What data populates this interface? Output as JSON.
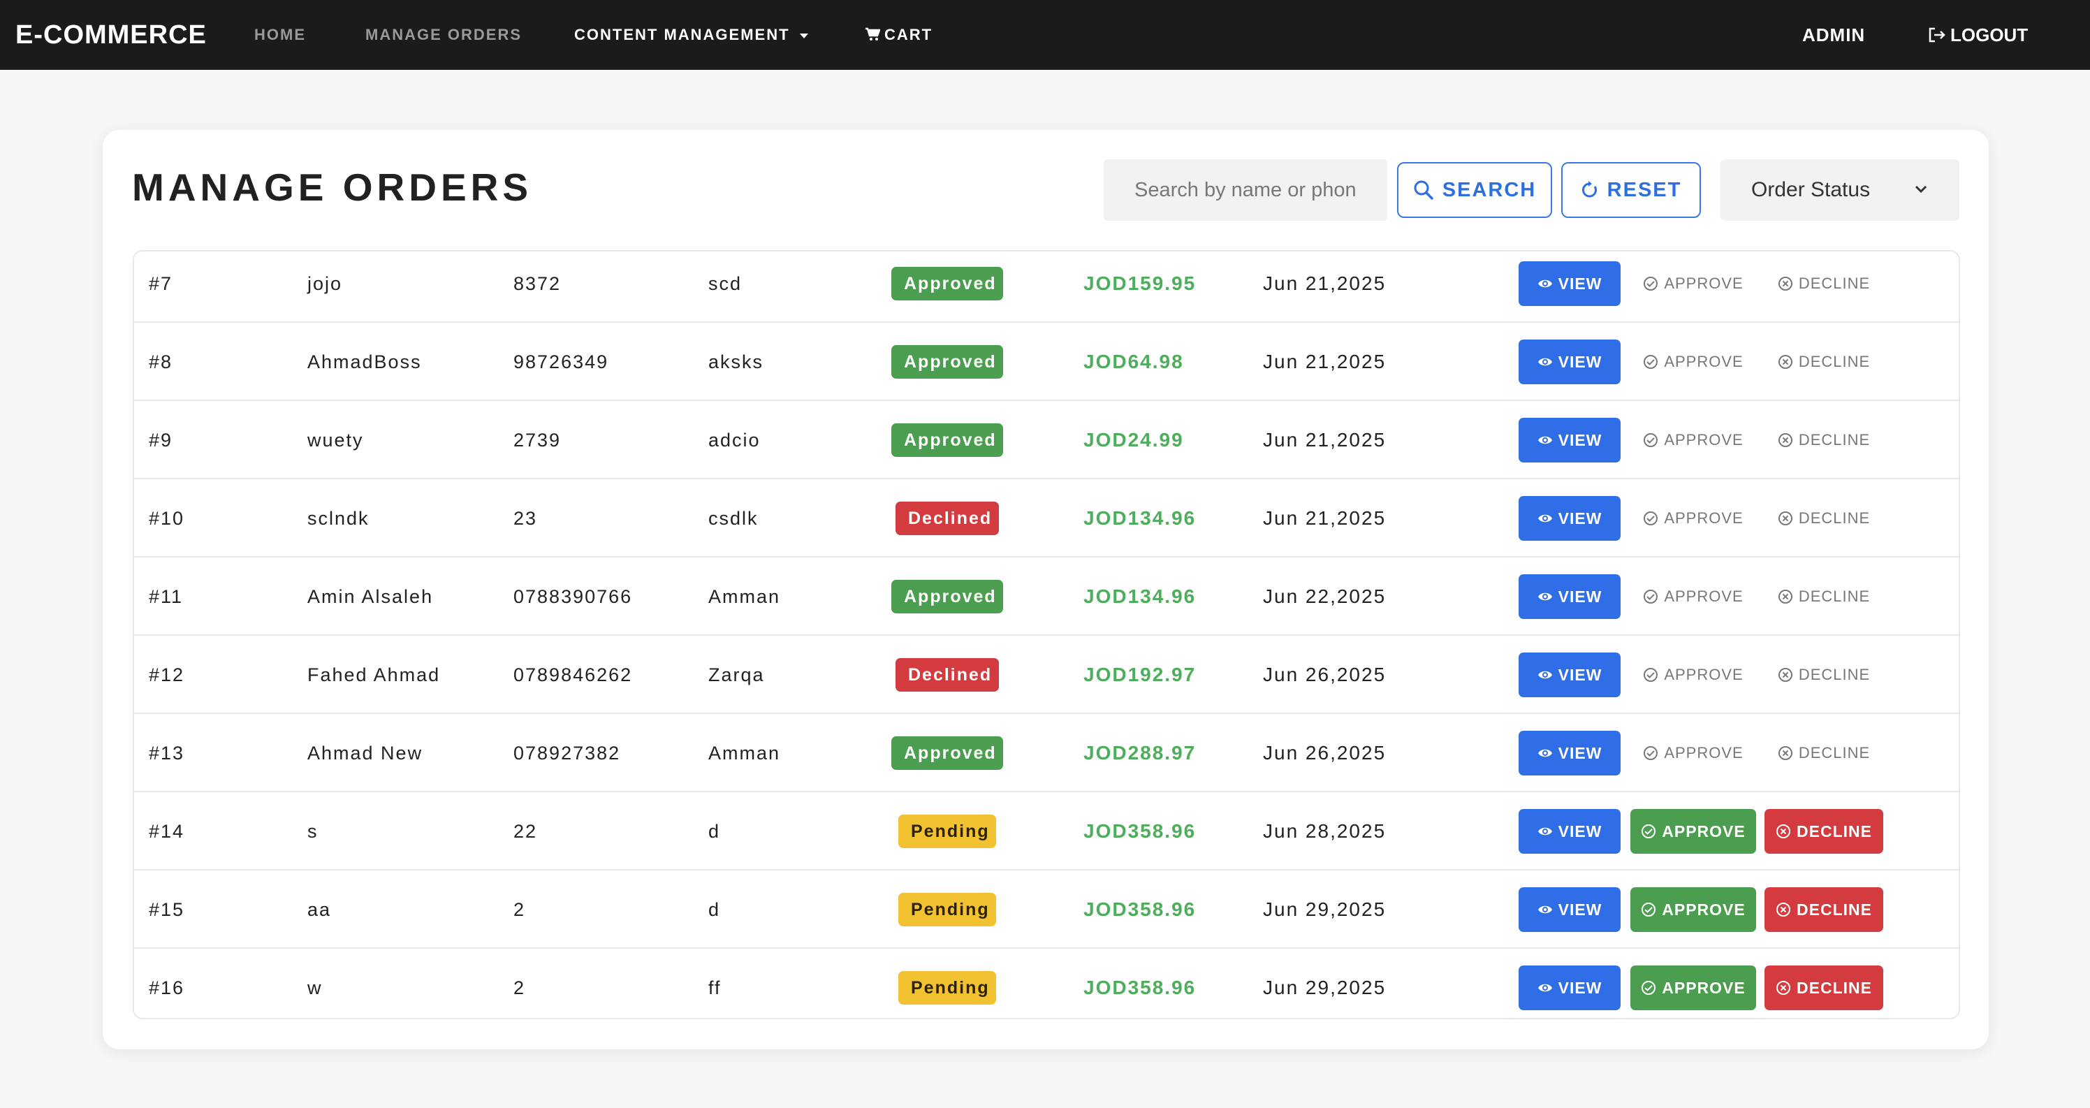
{
  "nav": {
    "brand": "E-COMMERCE",
    "home": "HOME",
    "manage_orders": "MANAGE ORDERS",
    "content_management": "CONTENT MANAGEMENT",
    "cart": "CART",
    "admin": "ADMIN",
    "logout": "LOGOUT"
  },
  "page": {
    "title": "MANAGE ORDERS",
    "search_placeholder": "Search by name or phone",
    "search_button": "SEARCH",
    "reset_button": "RESET",
    "status_select": "Order Status"
  },
  "actions": {
    "view": "VIEW",
    "approve": "APPROVE",
    "decline": "DECLINE"
  },
  "colors": {
    "approved": "#4b9e4f",
    "declined": "#d33b3f",
    "pending": "#f2c233",
    "primary": "#2f6ee6",
    "total_green": "#4cae5a"
  },
  "orders": [
    {
      "id": "#7",
      "name": "jojo",
      "phone": "8372",
      "city": "scd",
      "status": "Approved",
      "total": "JOD159.95",
      "date": "Jun 21,2025"
    },
    {
      "id": "#8",
      "name": "AhmadBoss",
      "phone": "98726349",
      "city": "aksks",
      "status": "Approved",
      "total": "JOD64.98",
      "date": "Jun 21,2025"
    },
    {
      "id": "#9",
      "name": "wuety",
      "phone": "2739",
      "city": "adcio",
      "status": "Approved",
      "total": "JOD24.99",
      "date": "Jun 21,2025"
    },
    {
      "id": "#10",
      "name": "sclndk",
      "phone": "23",
      "city": "csdlk",
      "status": "Declined",
      "total": "JOD134.96",
      "date": "Jun 21,2025"
    },
    {
      "id": "#11",
      "name": "Amin Alsaleh",
      "phone": "0788390766",
      "city": "Amman",
      "status": "Approved",
      "total": "JOD134.96",
      "date": "Jun 22,2025"
    },
    {
      "id": "#12",
      "name": "Fahed Ahmad",
      "phone": "0789846262",
      "city": "Zarqa",
      "status": "Declined",
      "total": "JOD192.97",
      "date": "Jun 26,2025"
    },
    {
      "id": "#13",
      "name": "Ahmad New",
      "phone": "078927382",
      "city": "Amman",
      "status": "Approved",
      "total": "JOD288.97",
      "date": "Jun 26,2025"
    },
    {
      "id": "#14",
      "name": "s",
      "phone": "22",
      "city": "d",
      "status": "Pending",
      "total": "JOD358.96",
      "date": "Jun 28,2025"
    },
    {
      "id": "#15",
      "name": "aa",
      "phone": "2",
      "city": "d",
      "status": "Pending",
      "total": "JOD358.96",
      "date": "Jun 29,2025"
    },
    {
      "id": "#16",
      "name": "w",
      "phone": "2",
      "city": "ff",
      "status": "Pending",
      "total": "JOD358.96",
      "date": "Jun 29,2025"
    }
  ]
}
